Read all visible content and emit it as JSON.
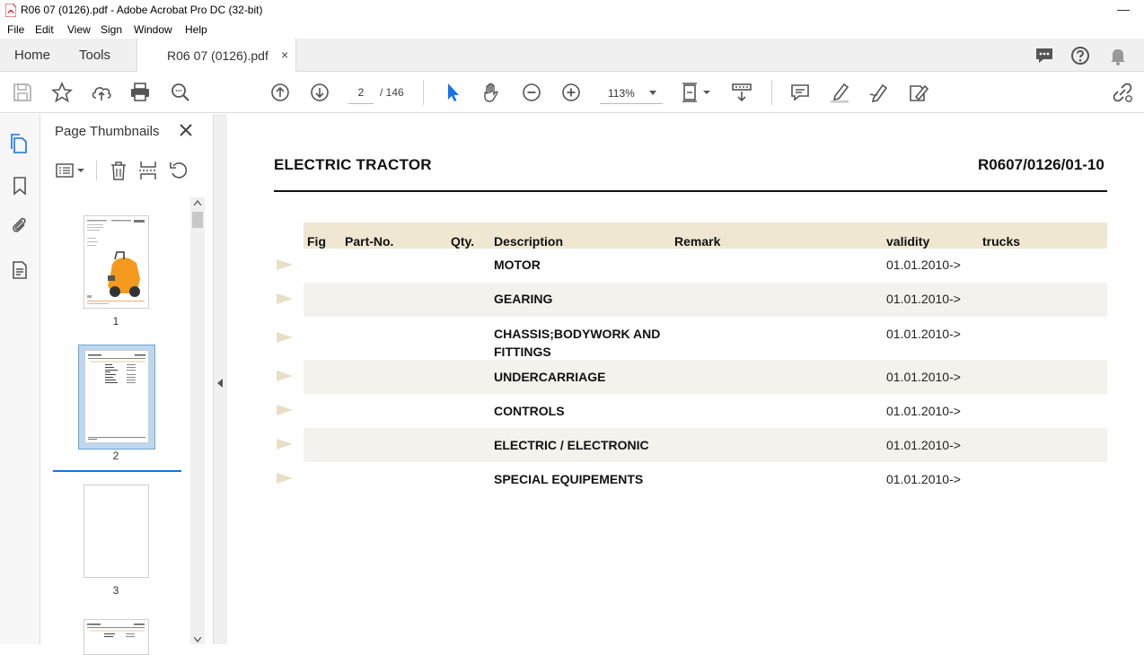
{
  "window": {
    "title": "R06 07 (0126).pdf - Adobe Acrobat Pro DC (32-bit)",
    "minimize": "—"
  },
  "menu": [
    "File",
    "Edit",
    "View",
    "Sign",
    "Window",
    "Help"
  ],
  "tabs": {
    "home": "Home",
    "tools": "Tools",
    "document": "R06 07 (0126).pdf",
    "close": "×"
  },
  "toolbar": {
    "page_current": "2",
    "page_total": "/ 146",
    "zoom": "113%"
  },
  "thumbnails": {
    "title": "Page Thumbnails",
    "pages": [
      "1",
      "2",
      "3"
    ],
    "selected": "2"
  },
  "document": {
    "title": "ELECTRIC TRACTOR",
    "code": "R0607/0126/01-10",
    "columns": {
      "fig": "Fig",
      "part_no": "Part-No.",
      "qty": "Qty.",
      "description": "Description",
      "remark": "Remark",
      "validity": "validity",
      "trucks": "trucks"
    },
    "rows": [
      {
        "description": "MOTOR",
        "validity": "01.01.2010->"
      },
      {
        "description": "GEARING",
        "validity": "01.01.2010->"
      },
      {
        "description": "CHASSIS;BODYWORK AND",
        "description2": "FITTINGS",
        "validity": "01.01.2010->"
      },
      {
        "description": "UNDERCARRIAGE",
        "validity": "01.01.2010->"
      },
      {
        "description": "CONTROLS",
        "validity": "01.01.2010->"
      },
      {
        "description": "ELECTRIC / ELECTRONIC",
        "validity": "01.01.2010->"
      },
      {
        "description": "SPECIAL EQUIPEMENTS",
        "validity": "01.01.2010->"
      }
    ]
  },
  "colors": {
    "accent": "#1473e6",
    "header_band": "#efe7d2",
    "row_shade": "#f3f2ec",
    "arrow": "#e8dfc6"
  }
}
